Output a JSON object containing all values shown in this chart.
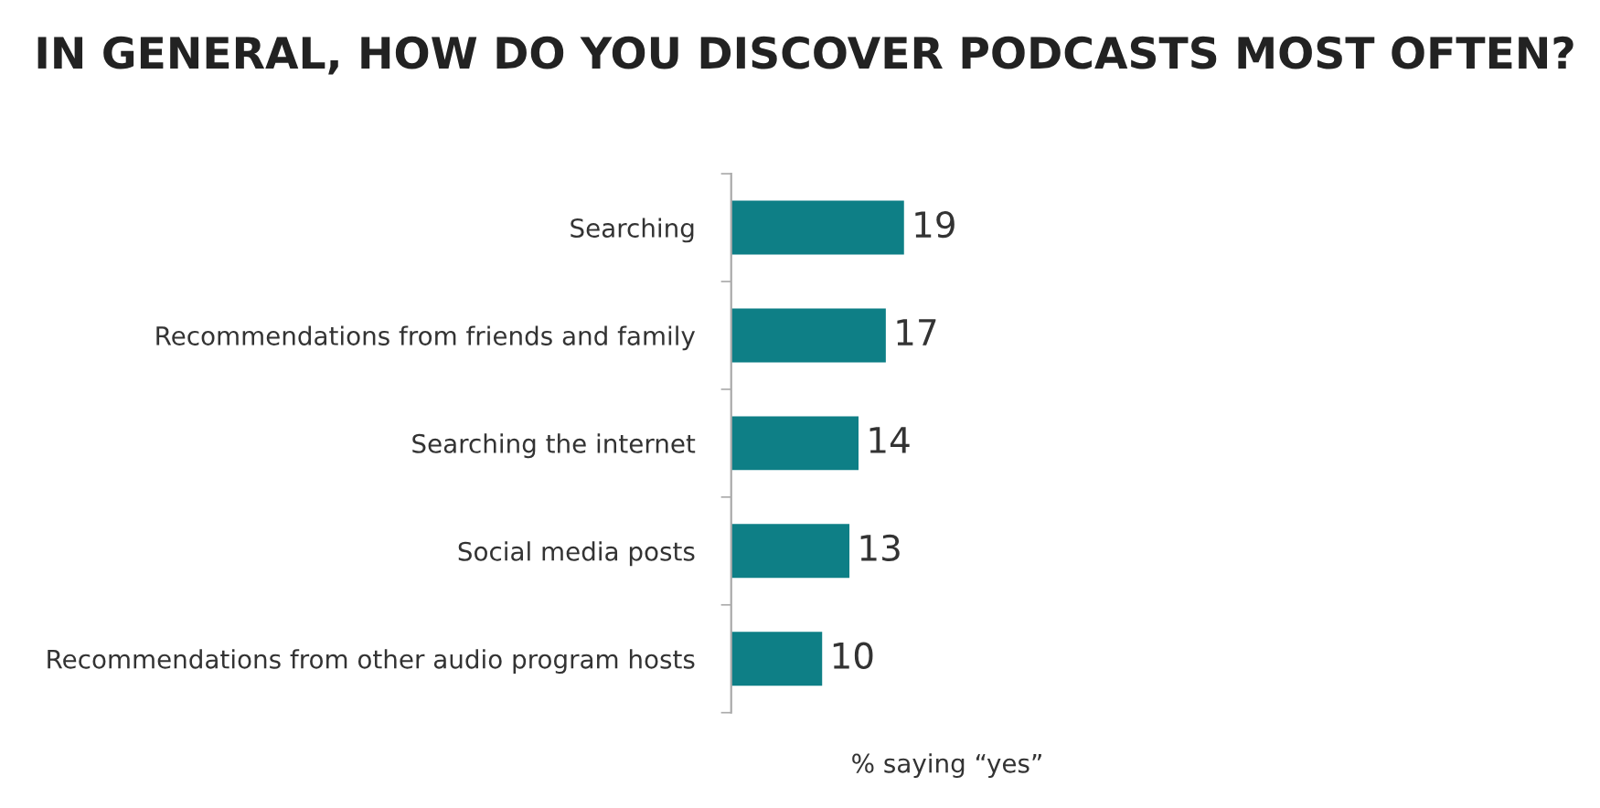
{
  "chart_data": {
    "type": "bar",
    "orientation": "horizontal",
    "title": "IN GENERAL, HOW DO YOU DISCOVER PODCASTS MOST OFTEN?",
    "categories": [
      "Searching",
      "Recommendations from friends and family",
      "Searching the internet",
      "Social media posts",
      "Recommendations from other audio program hosts"
    ],
    "values": [
      19,
      17,
      14,
      13,
      10
    ],
    "color": "#0e7f86",
    "data_labels": true,
    "xlabel": "% saying “yes”",
    "grid": false
  }
}
